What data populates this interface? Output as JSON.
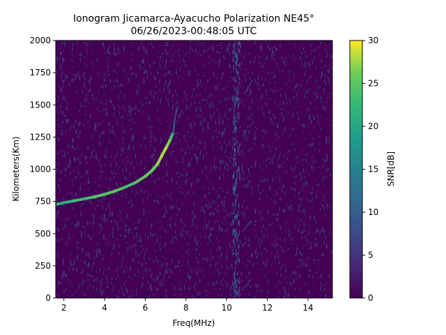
{
  "chart_data": {
    "type": "heatmap",
    "title_line1": "Ionogram Jicamarca-Ayacucho Polarization NE45°",
    "title_line2": "06/26/2023-00:48:05 UTC",
    "xlabel": "Freq(MHz)",
    "ylabel": "Kilometers(Km)",
    "xlim": [
      1.6,
      15.2
    ],
    "ylim": [
      0,
      2000
    ],
    "x_ticks": [
      2,
      4,
      6,
      8,
      10,
      12,
      14
    ],
    "y_ticks": [
      0,
      250,
      500,
      750,
      1000,
      1250,
      1500,
      1750,
      2000
    ],
    "colorbar": {
      "label": "SNR[dB]",
      "range": [
        0,
        30
      ],
      "ticks": [
        0,
        5,
        10,
        15,
        20,
        25,
        30
      ],
      "colormap": "viridis"
    },
    "background_color": "#440154",
    "trace": {
      "name": "",
      "x": [
        1.7,
        2.0,
        2.5,
        3.0,
        3.5,
        4.0,
        4.5,
        5.0,
        5.5,
        6.0,
        6.3,
        6.6,
        6.8,
        7.0,
        7.2,
        7.35
      ],
      "y": [
        730,
        740,
        755,
        770,
        785,
        805,
        830,
        860,
        895,
        945,
        985,
        1040,
        1100,
        1160,
        1220,
        1275
      ],
      "snr": [
        22,
        20,
        24,
        22,
        25,
        24,
        26,
        23,
        24,
        26,
        25,
        27,
        28,
        28,
        26,
        22
      ]
    },
    "trace_continuation": {
      "x": [
        7.35,
        7.45,
        7.55
      ],
      "y": [
        1275,
        1380,
        1470
      ],
      "snr": [
        14,
        10,
        8
      ]
    },
    "interference_band": {
      "x_center": 10.45,
      "width": 0.35,
      "snr": 10
    },
    "faint_traces": [
      {
        "x": [
          10.9,
          11.3
        ],
        "y": [
          1590,
          1700
        ],
        "snr": 14
      },
      {
        "x": [
          10.8,
          11.2
        ],
        "y": [
          520,
          600
        ],
        "snr": 12
      },
      {
        "x": [
          10.8,
          11.2
        ],
        "y": [
          60,
          150
        ],
        "snr": 12
      },
      {
        "x": [
          6.8,
          7.1
        ],
        "y": [
          90,
          270
        ],
        "snr": 10
      }
    ]
  }
}
